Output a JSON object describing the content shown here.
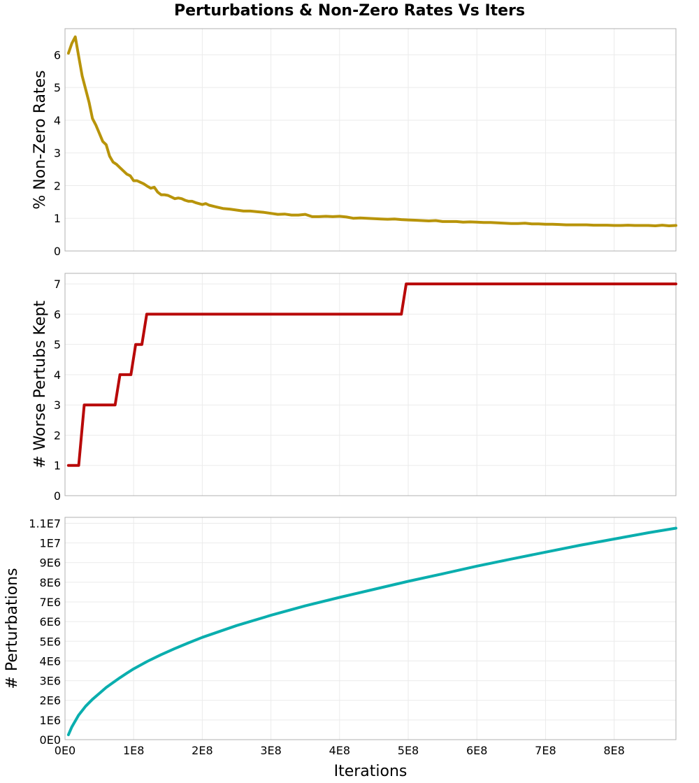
{
  "chart_data": {
    "type": "line",
    "title": "Perturbations & Non-Zero Rates Vs Iters",
    "xlabel": "Iterations",
    "xlim": [
      0,
      890000000
    ],
    "x_ticks": [
      0,
      100000000,
      200000000,
      300000000,
      400000000,
      500000000,
      600000000,
      700000000,
      800000000
    ],
    "x_tick_labels": [
      "0E0",
      "1E8",
      "2E8",
      "3E8",
      "4E8",
      "5E8",
      "6E8",
      "7E8",
      "8E8"
    ],
    "panels": [
      {
        "ylabel": "% Non-Zero Rates",
        "ylim": [
          0,
          6.8
        ],
        "y_ticks": [
          0,
          1,
          2,
          3,
          4,
          5,
          6
        ],
        "y_tick_labels": [
          "0",
          "1",
          "2",
          "3",
          "4",
          "5",
          "6"
        ],
        "color": "#b8940a",
        "x": [
          5000000,
          10000000,
          15000000,
          20000000,
          25000000,
          30000000,
          35000000,
          40000000,
          45000000,
          50000000,
          55000000,
          60000000,
          65000000,
          70000000,
          75000000,
          80000000,
          85000000,
          90000000,
          95000000,
          100000000,
          105000000,
          110000000,
          115000000,
          120000000,
          125000000,
          130000000,
          135000000,
          140000000,
          145000000,
          150000000,
          155000000,
          160000000,
          165000000,
          170000000,
          175000000,
          180000000,
          185000000,
          190000000,
          195000000,
          200000000,
          205000000,
          210000000,
          220000000,
          230000000,
          240000000,
          250000000,
          260000000,
          270000000,
          280000000,
          290000000,
          300000000,
          310000000,
          320000000,
          330000000,
          340000000,
          350000000,
          360000000,
          370000000,
          380000000,
          390000000,
          400000000,
          410000000,
          420000000,
          430000000,
          440000000,
          450000000,
          460000000,
          470000000,
          480000000,
          490000000,
          500000000,
          510000000,
          520000000,
          530000000,
          540000000,
          550000000,
          560000000,
          570000000,
          580000000,
          590000000,
          600000000,
          610000000,
          620000000,
          630000000,
          640000000,
          650000000,
          660000000,
          670000000,
          680000000,
          690000000,
          700000000,
          710000000,
          720000000,
          730000000,
          740000000,
          750000000,
          760000000,
          770000000,
          780000000,
          790000000,
          800000000,
          810000000,
          820000000,
          830000000,
          840000000,
          850000000,
          860000000,
          870000000,
          880000000,
          890000000
        ],
        "values": [
          6.05,
          6.35,
          6.55,
          5.95,
          5.35,
          4.95,
          4.55,
          4.05,
          3.85,
          3.6,
          3.35,
          3.25,
          2.9,
          2.72,
          2.65,
          2.55,
          2.45,
          2.35,
          2.3,
          2.15,
          2.15,
          2.1,
          2.05,
          1.98,
          1.92,
          1.95,
          1.8,
          1.72,
          1.72,
          1.7,
          1.65,
          1.6,
          1.62,
          1.6,
          1.55,
          1.52,
          1.52,
          1.48,
          1.45,
          1.42,
          1.45,
          1.4,
          1.35,
          1.3,
          1.28,
          1.25,
          1.22,
          1.22,
          1.2,
          1.18,
          1.15,
          1.12,
          1.13,
          1.1,
          1.1,
          1.12,
          1.05,
          1.05,
          1.06,
          1.05,
          1.06,
          1.04,
          1.0,
          1.01,
          1.0,
          0.99,
          0.98,
          0.97,
          0.98,
          0.96,
          0.95,
          0.94,
          0.93,
          0.92,
          0.93,
          0.9,
          0.9,
          0.9,
          0.88,
          0.89,
          0.88,
          0.87,
          0.87,
          0.86,
          0.85,
          0.84,
          0.84,
          0.85,
          0.83,
          0.83,
          0.82,
          0.82,
          0.81,
          0.8,
          0.8,
          0.8,
          0.8,
          0.79,
          0.79,
          0.79,
          0.78,
          0.78,
          0.79,
          0.78,
          0.78,
          0.78,
          0.77,
          0.79,
          0.77,
          0.78
        ]
      },
      {
        "ylabel": "# Worse Pertubs Kept",
        "ylim": [
          0,
          7.35
        ],
        "y_ticks": [
          0,
          1,
          2,
          3,
          4,
          5,
          6,
          7
        ],
        "y_tick_labels": [
          "0",
          "1",
          "2",
          "3",
          "4",
          "5",
          "6",
          "7"
        ],
        "color": "#b80808",
        "x": [
          5000000,
          20000000,
          28000000,
          73000000,
          80000000,
          96000000,
          103000000,
          112000000,
          119000000,
          490000000,
          497000000,
          890000000
        ],
        "values": [
          1,
          1,
          3,
          3,
          4,
          4,
          5,
          5,
          6,
          6,
          7,
          7
        ]
      },
      {
        "ylabel": "# Perturbations",
        "ylim": [
          0,
          11300000
        ],
        "y_ticks": [
          0,
          1000000,
          2000000,
          3000000,
          4000000,
          5000000,
          6000000,
          7000000,
          8000000,
          9000000,
          10000000,
          11000000
        ],
        "y_tick_labels": [
          "0E0",
          "1E6",
          "2E6",
          "3E6",
          "4E6",
          "5E6",
          "6E6",
          "7E6",
          "8E6",
          "9E6",
          "1E7",
          "1.1E7"
        ],
        "color": "#0aaeae",
        "x": [
          5000000,
          10000000,
          20000000,
          30000000,
          40000000,
          50000000,
          60000000,
          70000000,
          80000000,
          90000000,
          100000000,
          120000000,
          140000000,
          160000000,
          180000000,
          200000000,
          250000000,
          300000000,
          350000000,
          400000000,
          450000000,
          500000000,
          550000000,
          600000000,
          650000000,
          700000000,
          750000000,
          800000000,
          850000000,
          890000000
        ],
        "values": [
          250000,
          650000,
          1250000,
          1700000,
          2050000,
          2350000,
          2650000,
          2900000,
          3150000,
          3380000,
          3600000,
          3980000,
          4320000,
          4630000,
          4920000,
          5200000,
          5800000,
          6320000,
          6800000,
          7230000,
          7640000,
          8050000,
          8430000,
          8820000,
          9180000,
          9530000,
          9880000,
          10200000,
          10520000,
          10750000
        ]
      }
    ]
  }
}
